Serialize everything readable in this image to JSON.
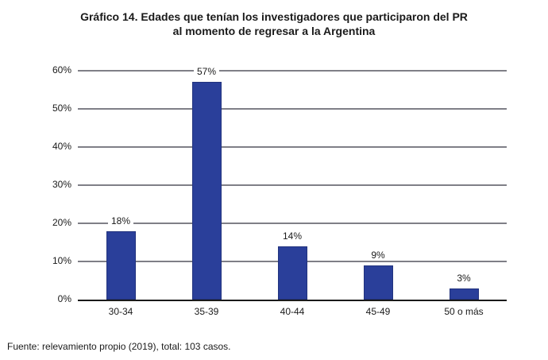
{
  "title": {
    "line1": "Gráfico 14. Edades que tenían los investigadores que participaron del PR",
    "line2": "al momento de regresar a la Argentina"
  },
  "footer": "Fuente: relevamiento propio (2019), total: 103 casos.",
  "chart_data": {
    "type": "bar",
    "title": "Gráfico 14. Edades que tenían los investigadores que participaron del PR al momento de regresar a la Argentina",
    "categories": [
      "30-34",
      "35-39",
      "40-44",
      "45-49",
      "50 o más"
    ],
    "values": [
      18,
      57,
      14,
      9,
      3
    ],
    "data_labels": [
      "18%",
      "57%",
      "14%",
      "9%",
      "3%"
    ],
    "y_ticks": [
      "60%",
      "50%",
      "40%",
      "30%",
      "20%",
      "10%",
      "0%"
    ],
    "y_tick_values": [
      60,
      50,
      40,
      30,
      20,
      10,
      0
    ],
    "ylim": [
      0,
      60
    ],
    "xlabel": "",
    "ylabel": "",
    "grid": true,
    "legend_position": "none",
    "bar_color": "#2a3f9a",
    "gridline_color": "#7f7f87",
    "axis_color": "#1a1a1a",
    "source_note": "Fuente: relevamiento propio (2019), total: 103 casos."
  }
}
